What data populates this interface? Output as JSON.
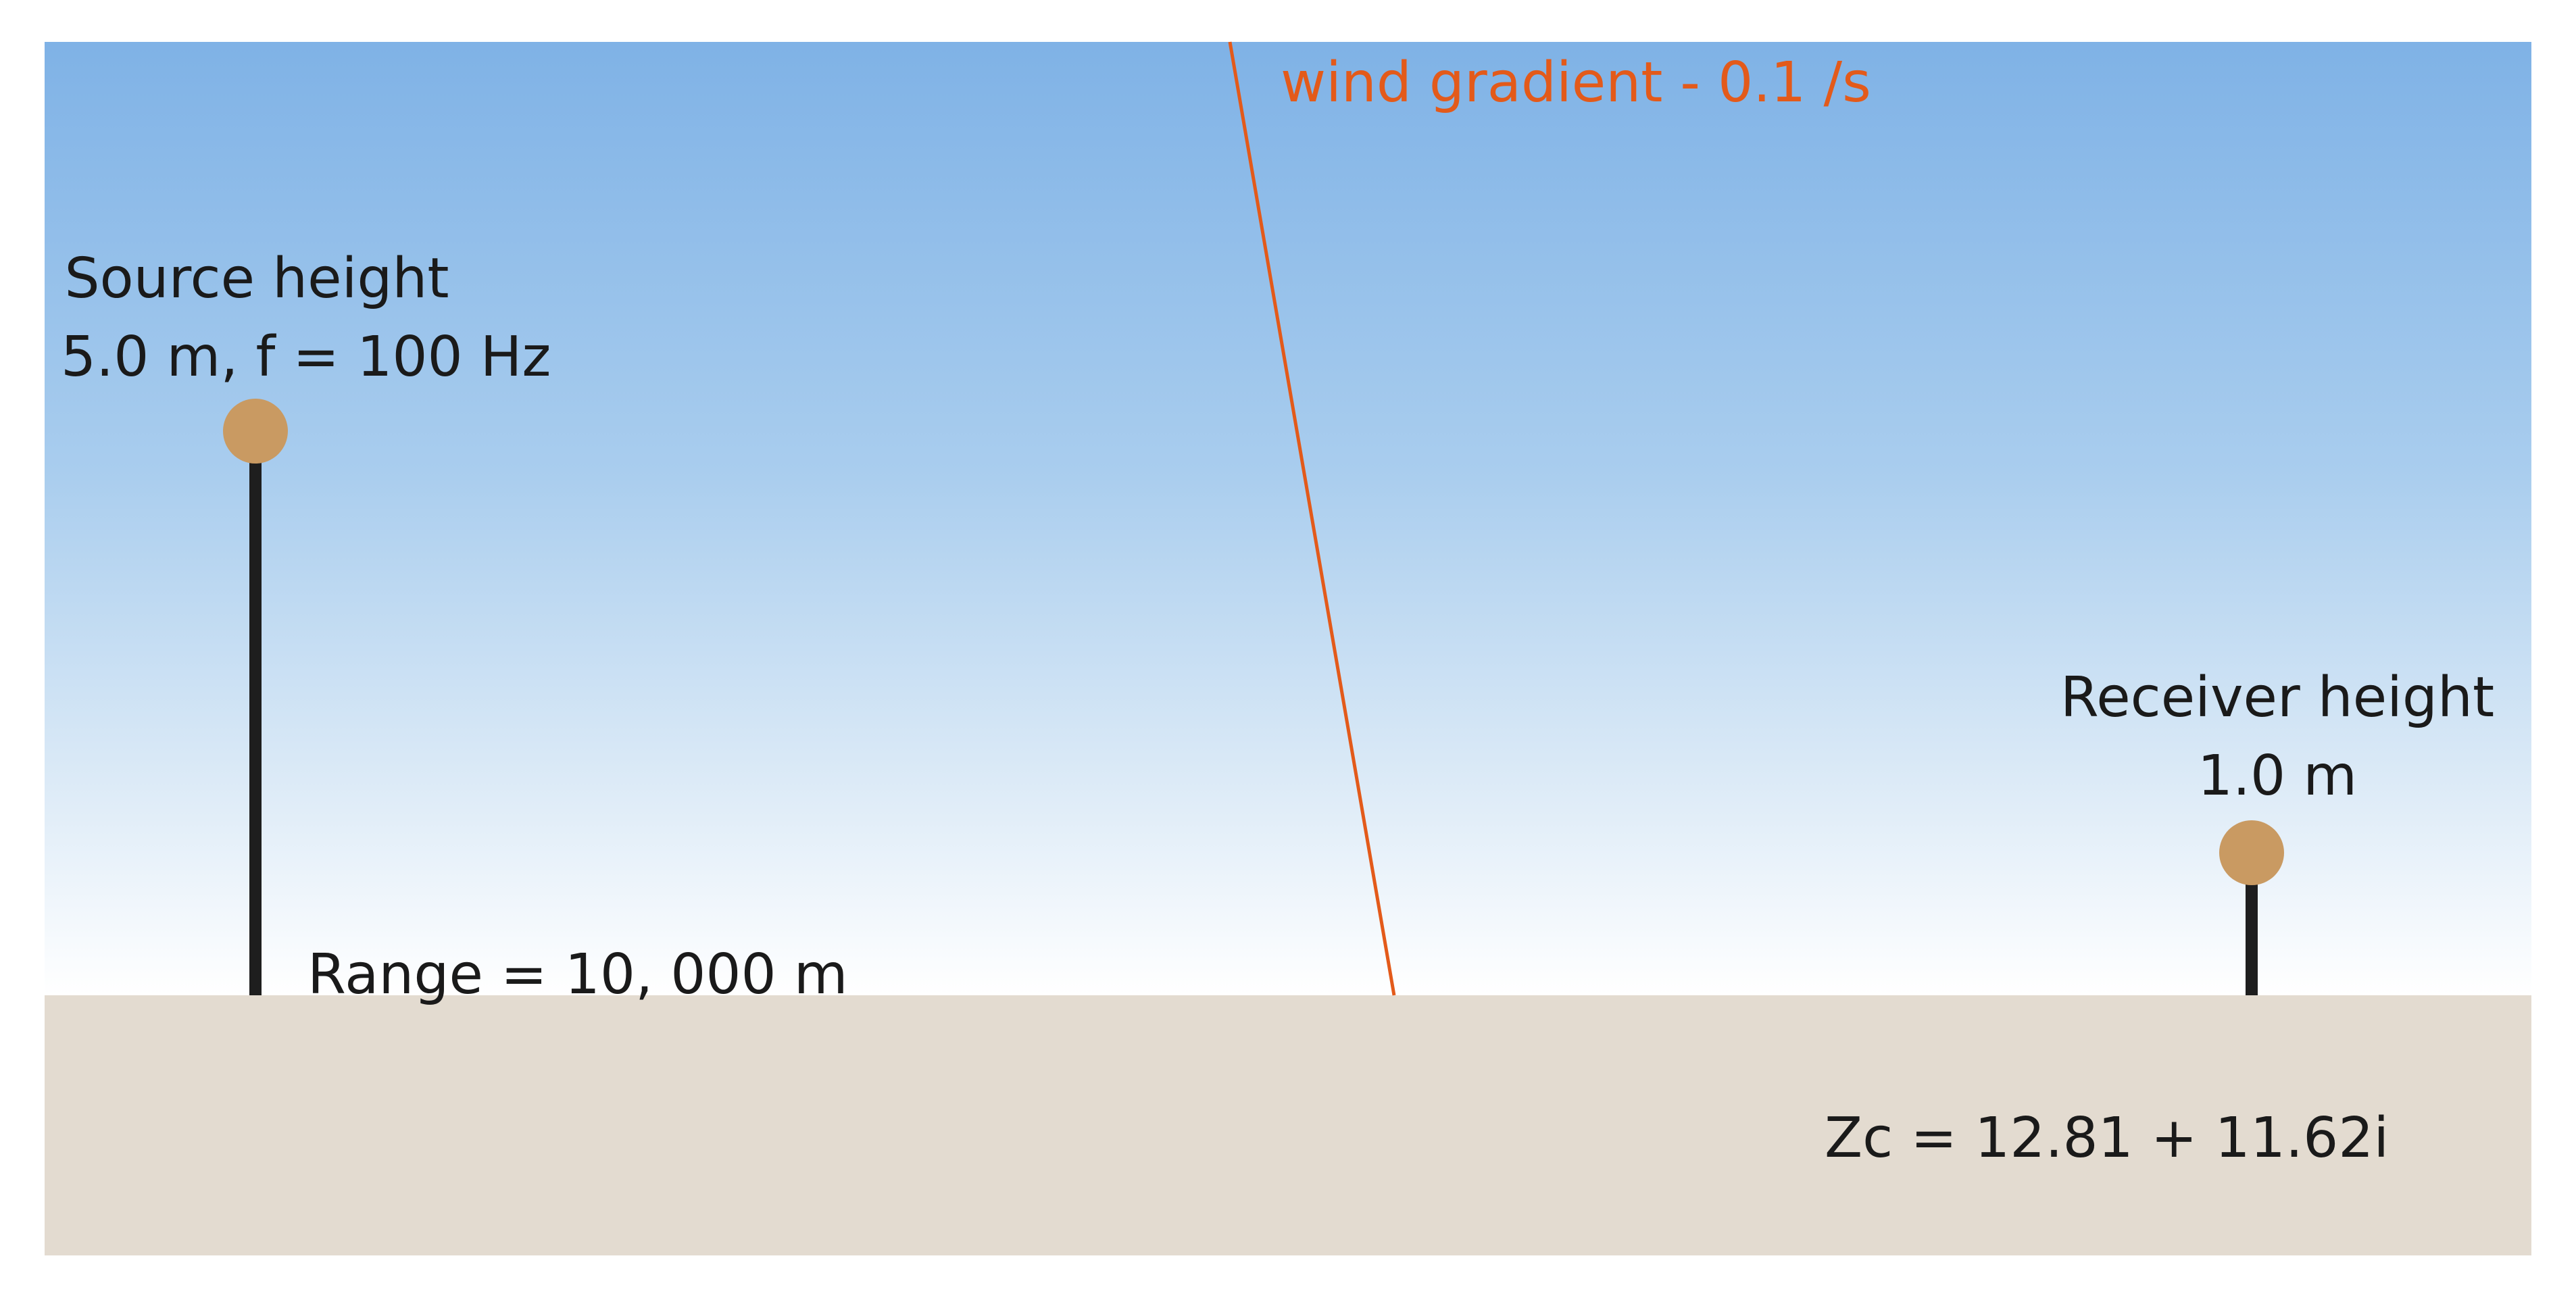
{
  "source": {
    "line1": "Source height",
    "line2": "5.0 m, f = 100 Hz"
  },
  "receiver": {
    "line1": "Receiver height",
    "line2": "1.0 m"
  },
  "range_label": "Range = 10, 000 m",
  "wind_label": "wind gradient - 0.1 /s",
  "impedance_label": "Zc = 12.81 + 11.62i",
  "colors": {
    "sky_top": "#7fb2e6",
    "sky_bottom": "#ffffff",
    "ground": "#e3dbd0",
    "marker": "#c99a62",
    "pole": "#1e1e1e",
    "wind": "#e35a1a",
    "text": "#1a1a1a"
  }
}
